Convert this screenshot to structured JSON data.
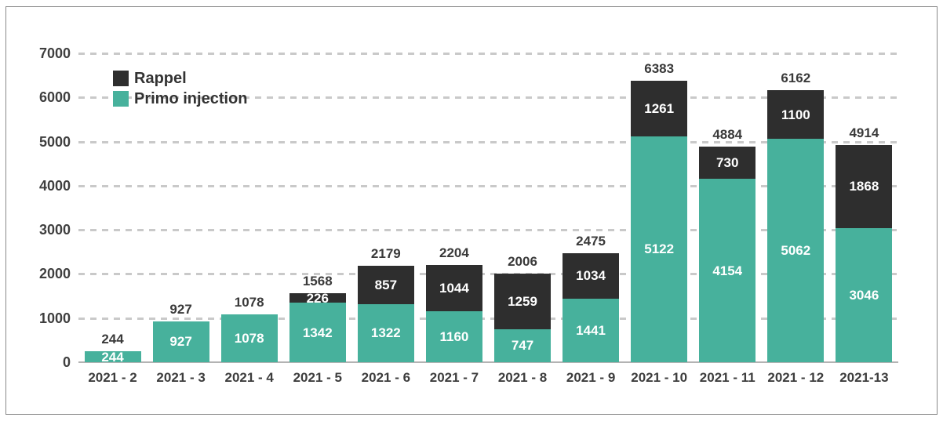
{
  "chart_data": {
    "type": "bar",
    "stacked": true,
    "title": "",
    "xlabel": "",
    "ylabel": "",
    "ylim": [
      0,
      7000
    ],
    "ytick_step": 1000,
    "grid": "horizontal-dashed",
    "legend_position": "top-left-inside",
    "categories": [
      "2021 - 2",
      "2021 - 3",
      "2021 - 4",
      "2021 - 5",
      "2021 - 6",
      "2021 - 7",
      "2021 - 8",
      "2021 - 9",
      "2021 - 10",
      "2021 - 11",
      "2021 - 12",
      "2021-13"
    ],
    "series": [
      {
        "name": "Primo injection",
        "color": "#47b19c",
        "values": [
          244,
          927,
          1078,
          1342,
          1322,
          1160,
          747,
          1441,
          5122,
          4154,
          5062,
          3046
        ]
      },
      {
        "name": "Rappel",
        "color": "#2e2e2e",
        "values": [
          null,
          null,
          null,
          226,
          857,
          1044,
          1259,
          1034,
          1261,
          730,
          1100,
          1868
        ]
      }
    ],
    "totals": [
      244,
      927,
      1078,
      1568,
      2179,
      2204,
      2006,
      2475,
      6383,
      4884,
      6162,
      4914
    ],
    "legend_items": [
      {
        "label": "Rappel",
        "color": "#2e2e2e"
      },
      {
        "label": "Primo injection",
        "color": "#47b19c"
      }
    ],
    "value_label_color": "#ffffff",
    "total_label_color": "#3a3a3a"
  }
}
